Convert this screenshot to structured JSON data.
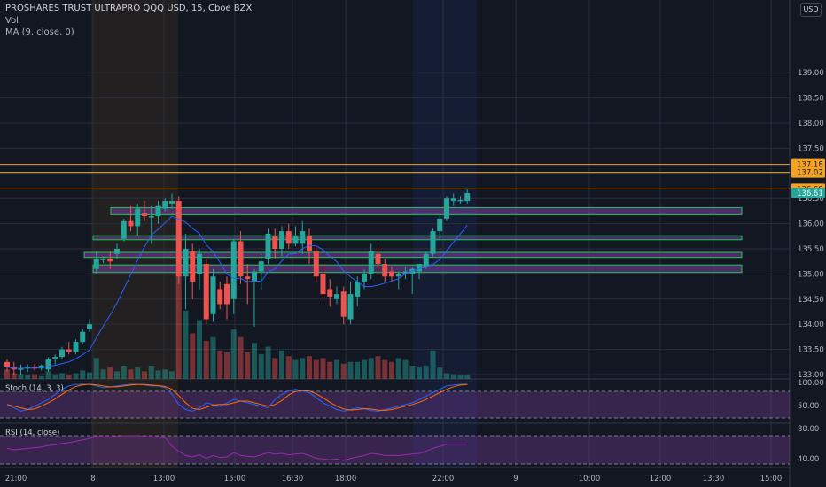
{
  "header": {
    "title": "PROSHARES TRUST ULTRAPRO QQQ USD, 15, Cboe BZX",
    "vol_label": "Vol",
    "ma_label": "MA (9, close, 0)",
    "currency": "USD"
  },
  "panes": {
    "stoch_label": "Stoch (14, 3, 3)",
    "rsi_label": "RSI (14, close)"
  },
  "colors": {
    "up": "#26a69a",
    "down": "#ef5350",
    "ma": "#2962ff",
    "level_line": "#f7a21b",
    "zone_border": "#22c55e",
    "zone_fill": "#7b3fa0",
    "stoch_k": "#2962ff",
    "stoch_d": "#ff6d00",
    "rsi": "#9c27b0"
  },
  "chart_data": {
    "type": "candlestick",
    "title": "PROSHARES TRUST ULTRAPRO QQQ USD, 15, Cboe BZX",
    "x_ticks": [
      "21:00",
      "8",
      "13:00",
      "15:00",
      "16:30",
      "18:00",
      "9",
      "22:00",
      "9",
      "10:00",
      "12:00",
      "13:30",
      "15:00"
    ],
    "y_ticks": [
      "133.00",
      "133.50",
      "134.00",
      "134.50",
      "135.00",
      "135.50",
      "136.00",
      "136.50",
      "137.00",
      "137.50",
      "138.00",
      "138.50",
      "139.00"
    ],
    "ylim": [
      133.0,
      139.3
    ],
    "price_labels": [
      "137.18",
      "137.02",
      "136.69",
      "136.61"
    ],
    "horizontal_levels": [
      137.18,
      137.02,
      136.69
    ],
    "zones": [
      {
        "low": 136.18,
        "high": 136.32
      },
      {
        "low": 135.68,
        "high": 135.76
      },
      {
        "low": 135.33,
        "high": 135.43
      },
      {
        "low": 135.03,
        "high": 135.18
      }
    ],
    "candles": [
      {
        "o": 133.25,
        "h": 133.3,
        "l": 133.05,
        "c": 133.15
      },
      {
        "o": 133.15,
        "h": 133.25,
        "l": 133.0,
        "c": 133.1
      },
      {
        "o": 133.1,
        "h": 133.2,
        "l": 133.0,
        "c": 133.12
      },
      {
        "o": 133.12,
        "h": 133.2,
        "l": 133.05,
        "c": 133.15
      },
      {
        "o": 133.15,
        "h": 133.2,
        "l": 133.08,
        "c": 133.12
      },
      {
        "o": 133.12,
        "h": 133.2,
        "l": 133.08,
        "c": 133.18
      },
      {
        "o": 133.1,
        "h": 133.35,
        "l": 133.05,
        "c": 133.3
      },
      {
        "o": 133.3,
        "h": 133.4,
        "l": 133.2,
        "c": 133.35
      },
      {
        "o": 133.35,
        "h": 133.55,
        "l": 133.3,
        "c": 133.5
      },
      {
        "o": 133.5,
        "h": 133.65,
        "l": 133.4,
        "c": 133.45
      },
      {
        "o": 133.45,
        "h": 133.7,
        "l": 133.4,
        "c": 133.65
      },
      {
        "o": 133.65,
        "h": 133.9,
        "l": 133.6,
        "c": 133.85
      },
      {
        "o": 133.9,
        "h": 134.1,
        "l": 133.85,
        "c": 134.0
      },
      {
        "o": 135.1,
        "h": 135.45,
        "l": 135.0,
        "c": 135.3
      },
      {
        "o": 135.28,
        "h": 135.35,
        "l": 135.22,
        "c": 135.3
      },
      {
        "o": 135.3,
        "h": 135.45,
        "l": 135.1,
        "c": 135.25
      },
      {
        "o": 135.4,
        "h": 135.6,
        "l": 135.3,
        "c": 135.5
      },
      {
        "o": 135.7,
        "h": 136.1,
        "l": 135.65,
        "c": 136.05
      },
      {
        "o": 136.05,
        "h": 136.35,
        "l": 135.85,
        "c": 135.95
      },
      {
        "o": 135.95,
        "h": 136.4,
        "l": 135.75,
        "c": 136.3
      },
      {
        "o": 136.2,
        "h": 136.45,
        "l": 136.05,
        "c": 136.15
      },
      {
        "o": 136.15,
        "h": 136.35,
        "l": 135.6,
        "c": 136.15
      },
      {
        "o": 136.15,
        "h": 136.45,
        "l": 136.0,
        "c": 136.35
      },
      {
        "o": 136.3,
        "h": 136.5,
        "l": 136.25,
        "c": 136.45
      },
      {
        "o": 136.4,
        "h": 136.6,
        "l": 136.3,
        "c": 136.45
      },
      {
        "o": 136.45,
        "h": 136.55,
        "l": 134.8,
        "c": 134.95
      },
      {
        "o": 134.95,
        "h": 135.8,
        "l": 134.3,
        "c": 135.5
      },
      {
        "o": 135.45,
        "h": 135.6,
        "l": 134.5,
        "c": 134.85
      },
      {
        "o": 135.0,
        "h": 135.5,
        "l": 134.7,
        "c": 135.4
      },
      {
        "o": 135.2,
        "h": 135.3,
        "l": 134.0,
        "c": 134.1
      },
      {
        "o": 134.2,
        "h": 135.1,
        "l": 134.05,
        "c": 134.95
      },
      {
        "o": 134.7,
        "h": 134.85,
        "l": 134.3,
        "c": 134.4
      },
      {
        "o": 134.8,
        "h": 134.95,
        "l": 134.1,
        "c": 134.4
      },
      {
        "o": 134.5,
        "h": 135.7,
        "l": 134.2,
        "c": 135.65
      },
      {
        "o": 135.65,
        "h": 135.85,
        "l": 134.8,
        "c": 134.95
      },
      {
        "o": 134.95,
        "h": 135.2,
        "l": 134.4,
        "c": 134.9
      },
      {
        "o": 134.85,
        "h": 135.1,
        "l": 133.95,
        "c": 135.05
      },
      {
        "o": 135.05,
        "h": 135.4,
        "l": 134.7,
        "c": 135.25
      },
      {
        "o": 135.3,
        "h": 135.9,
        "l": 135.2,
        "c": 135.8
      },
      {
        "o": 135.75,
        "h": 135.9,
        "l": 135.3,
        "c": 135.5
      },
      {
        "o": 135.5,
        "h": 135.95,
        "l": 135.35,
        "c": 135.85
      },
      {
        "o": 135.85,
        "h": 136.0,
        "l": 135.5,
        "c": 135.6
      },
      {
        "o": 135.6,
        "h": 135.95,
        "l": 135.55,
        "c": 135.75
      },
      {
        "o": 135.6,
        "h": 136.05,
        "l": 135.4,
        "c": 135.85
      },
      {
        "o": 135.75,
        "h": 135.9,
        "l": 135.2,
        "c": 135.45
      },
      {
        "o": 135.45,
        "h": 135.55,
        "l": 134.85,
        "c": 134.95
      },
      {
        "o": 135.0,
        "h": 135.2,
        "l": 134.5,
        "c": 134.6
      },
      {
        "o": 134.7,
        "h": 134.9,
        "l": 134.35,
        "c": 134.55
      },
      {
        "o": 134.5,
        "h": 134.75,
        "l": 134.4,
        "c": 134.6
      },
      {
        "o": 134.65,
        "h": 134.75,
        "l": 134.0,
        "c": 134.15
      },
      {
        "o": 134.1,
        "h": 134.85,
        "l": 134.0,
        "c": 134.6
      },
      {
        "o": 134.55,
        "h": 134.95,
        "l": 134.35,
        "c": 134.85
      },
      {
        "o": 134.85,
        "h": 135.1,
        "l": 134.7,
        "c": 135.0
      },
      {
        "o": 135.0,
        "h": 135.6,
        "l": 134.9,
        "c": 135.45
      },
      {
        "o": 135.4,
        "h": 135.55,
        "l": 135.05,
        "c": 135.2
      },
      {
        "o": 135.2,
        "h": 135.3,
        "l": 134.85,
        "c": 134.95
      },
      {
        "o": 135.05,
        "h": 135.15,
        "l": 134.85,
        "c": 134.95
      },
      {
        "o": 134.95,
        "h": 135.05,
        "l": 134.7,
        "c": 135.0
      },
      {
        "o": 135.0,
        "h": 135.15,
        "l": 134.9,
        "c": 135.05
      },
      {
        "o": 135.0,
        "h": 135.15,
        "l": 134.6,
        "c": 135.1
      },
      {
        "o": 135.05,
        "h": 135.2,
        "l": 134.9,
        "c": 135.2
      },
      {
        "o": 135.15,
        "h": 135.45,
        "l": 135.1,
        "c": 135.4
      },
      {
        "o": 135.4,
        "h": 135.9,
        "l": 135.35,
        "c": 135.85
      },
      {
        "o": 135.85,
        "h": 136.15,
        "l": 135.7,
        "c": 136.1
      },
      {
        "o": 136.1,
        "h": 136.55,
        "l": 136.05,
        "c": 136.5
      },
      {
        "o": 136.45,
        "h": 136.6,
        "l": 136.35,
        "c": 136.5
      },
      {
        "o": 136.45,
        "h": 136.55,
        "l": 136.4,
        "c": 136.47
      },
      {
        "o": 136.45,
        "h": 136.7,
        "l": 136.4,
        "c": 136.61
      }
    ],
    "volume": [
      10,
      6,
      5,
      4,
      5,
      3,
      8,
      5,
      6,
      4,
      6,
      9,
      7,
      22,
      10,
      12,
      8,
      14,
      10,
      12,
      8,
      14,
      9,
      10,
      8,
      110,
      72,
      48,
      62,
      40,
      44,
      30,
      28,
      52,
      44,
      28,
      38,
      26,
      34,
      22,
      30,
      24,
      20,
      22,
      24,
      20,
      22,
      18,
      20,
      16,
      18,
      18,
      20,
      22,
      24,
      20,
      18,
      22,
      20,
      14,
      12,
      14,
      30,
      12,
      6,
      5,
      4,
      4
    ],
    "stoch_ticks": [
      "100.00",
      "50.00"
    ],
    "rsi_ticks": [
      "80.00",
      "40.00"
    ]
  }
}
